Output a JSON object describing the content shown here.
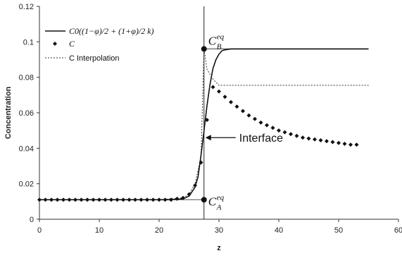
{
  "chart_data": {
    "type": "line",
    "title": "",
    "xlabel": "z",
    "ylabel": "Concentration",
    "xlim": [
      0,
      60
    ],
    "ylim": [
      0,
      0.12
    ],
    "x_ticks": [
      "0",
      "10",
      "20",
      "30",
      "40",
      "50",
      "60"
    ],
    "y_ticks": [
      "0",
      "0.02",
      "0.04",
      "0.06",
      "0.08",
      "0.1",
      "0.12"
    ],
    "grid": false,
    "legend_position": "top-left",
    "legend": {
      "formula_series": "C0((1−φ)/2 + (1+φ)/2 k)",
      "points_series": "C",
      "interp_series": "C Interpolation"
    },
    "series": [
      {
        "name": "C Interpolation",
        "style": "dotted",
        "x": [
          0,
          20,
          24,
          25,
          26,
          27,
          27.5,
          28,
          29,
          30,
          55
        ],
        "y": [
          0.011,
          0.011,
          0.012,
          0.014,
          0.02,
          0.035,
          0.096,
          0.0845,
          0.079,
          0.0755,
          0.0755
        ]
      },
      {
        "name": "C0((1−φ)/2 + (1+φ)/2 k)",
        "style": "solid",
        "x": [
          0,
          22,
          24,
          25,
          26,
          26.5,
          27,
          27.5,
          28,
          28.5,
          29,
          29.5,
          30,
          30.5,
          31,
          32,
          40,
          55
        ],
        "y": [
          0.011,
          0.011,
          0.0115,
          0.013,
          0.018,
          0.024,
          0.036,
          0.05,
          0.064,
          0.076,
          0.085,
          0.09,
          0.093,
          0.095,
          0.0955,
          0.096,
          0.096,
          0.096
        ]
      },
      {
        "name": "C",
        "style": "markers",
        "x": [
          0,
          1,
          2,
          3,
          4,
          5,
          6,
          7,
          8,
          9,
          10,
          11,
          12,
          13,
          14,
          15,
          16,
          17,
          18,
          19,
          20,
          21,
          22,
          23,
          24,
          25,
          26,
          27,
          28,
          29,
          30,
          31,
          32,
          33,
          34,
          35,
          36,
          37,
          38,
          39,
          40,
          41,
          42,
          43,
          44,
          45,
          46,
          47,
          48,
          49,
          50,
          51,
          52,
          53
        ],
        "y": [
          0.011,
          0.011,
          0.011,
          0.011,
          0.011,
          0.011,
          0.011,
          0.011,
          0.011,
          0.011,
          0.011,
          0.011,
          0.011,
          0.011,
          0.011,
          0.011,
          0.011,
          0.011,
          0.011,
          0.011,
          0.011,
          0.011,
          0.011,
          0.0115,
          0.012,
          0.014,
          0.019,
          0.032,
          0.056,
          0.0745,
          0.072,
          0.069,
          0.066,
          0.0635,
          0.061,
          0.0585,
          0.0565,
          0.0545,
          0.053,
          0.0515,
          0.05,
          0.049,
          0.048,
          0.047,
          0.046,
          0.0455,
          0.045,
          0.0445,
          0.044,
          0.0435,
          0.043,
          0.0425,
          0.042,
          0.042
        ]
      }
    ],
    "reference_line": {
      "x": 27.5,
      "style": "solid"
    },
    "plateau_lines": [
      {
        "y": 0.011,
        "x_range": [
          20,
          27.5
        ]
      },
      {
        "y": 0.096,
        "x_range": [
          27.5,
          55
        ]
      }
    ],
    "annotations": {
      "upper_point": {
        "x": 27.5,
        "y": 0.096,
        "label_base": "C",
        "label_sup": "eq",
        "label_sub": "B"
      },
      "lower_point": {
        "x": 27.5,
        "y": 0.011,
        "label_base": "C",
        "label_sup": "eq",
        "label_sub": "A"
      },
      "interface_label": "Interface",
      "interface_arrow_y": 0.046
    }
  }
}
